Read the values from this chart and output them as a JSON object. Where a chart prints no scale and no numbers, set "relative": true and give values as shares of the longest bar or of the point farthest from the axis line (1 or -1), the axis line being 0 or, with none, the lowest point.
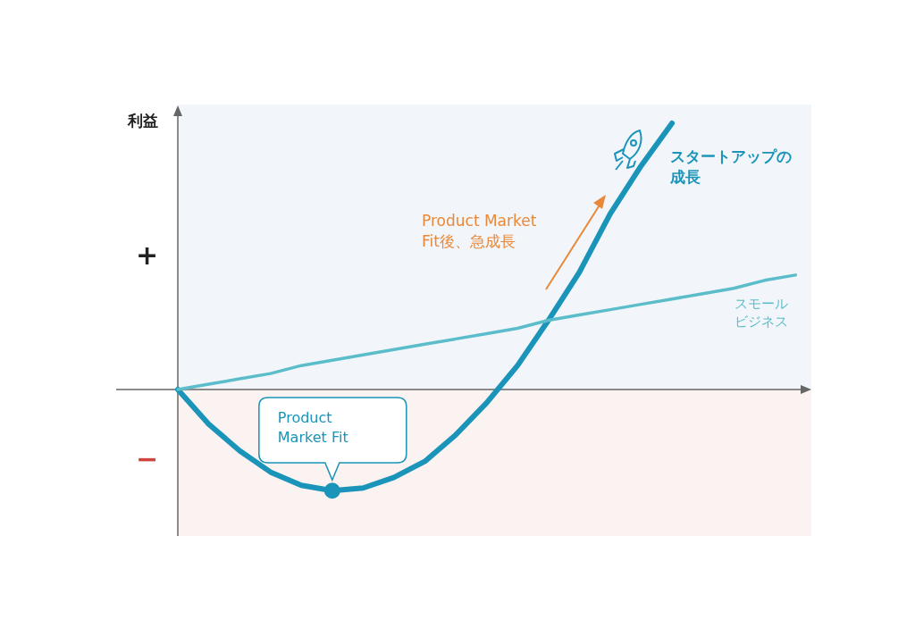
{
  "chart_data": {
    "type": "line",
    "relative": true,
    "ylabel": "利益",
    "legend": "right",
    "categories": [
      null,
      null,
      null,
      null,
      null,
      null,
      null,
      null,
      null,
      null,
      null,
      null,
      null,
      null,
      null,
      null,
      null,
      null,
      null,
      null,
      null
    ],
    "series": [
      {
        "name": "スタートアップの成長",
        "color": "#1a94b8",
        "values": [
          0,
          -0.13,
          -0.23,
          -0.31,
          -0.36,
          -0.38,
          -0.37,
          -0.33,
          -0.27,
          -0.17,
          -0.05,
          0.09,
          0.26,
          0.44,
          0.66,
          0.84,
          1,
          null,
          null,
          null,
          null
        ]
      },
      {
        "name": "スモールビジネス",
        "color": "#5cbdca",
        "values": [
          0,
          0.02,
          0.04,
          0.06,
          0.09,
          0.11,
          0.13,
          0.15,
          0.17,
          0.19,
          0.21,
          0.23,
          0.26,
          0.28,
          0.3,
          0.32,
          0.34,
          0.36,
          0.38,
          0.41,
          0.43
        ]
      }
    ],
    "bands": [
      {
        "axis": "y",
        "from": 0,
        "to": 1.07,
        "color": "#f2f6fb"
      },
      {
        "axis": "y",
        "from": -0.55,
        "to": 0,
        "color": "#fbf2f2"
      }
    ],
    "annotations": [
      "+",
      "−",
      "Product Market Fit後、急成長",
      "Product Market Fit"
    ]
  }
}
